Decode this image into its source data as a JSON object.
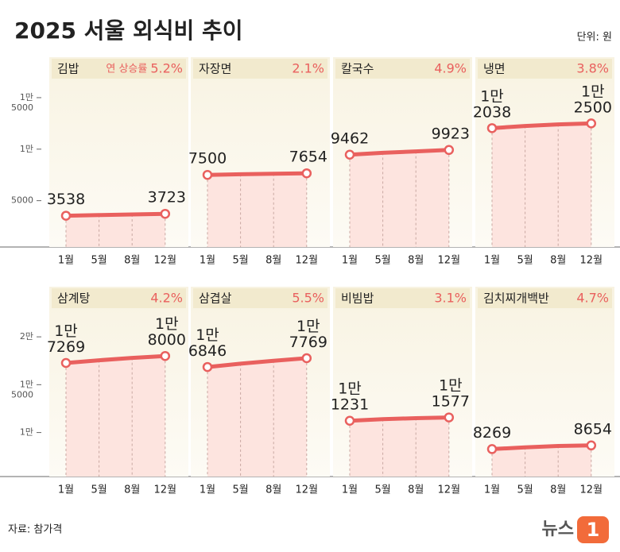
{
  "title": "2025 서울 외식비 추이",
  "unit_note": "단위: 원",
  "source": "자료: 참가격",
  "logo": "뉴스",
  "logo_mark": "1",
  "chart_data": [
    {
      "type": "line",
      "title": "김밥",
      "annotation_prefix": "연 상승률",
      "annotation": "5.2%",
      "categories": [
        "1월",
        "5월",
        "8월",
        "12월"
      ],
      "values": [
        3538,
        3600,
        3660,
        3723
      ],
      "color": "#e9605e",
      "ylim": [
        500,
        17000
      ],
      "yticks": [
        5000,
        {
          "value": 10000,
          "label": "1만"
        },
        {
          "value": 15000,
          "label": "1만\n5000"
        }
      ]
    },
    {
      "type": "line",
      "title": "자장면",
      "annotation": "2.1%",
      "categories": [
        "1월",
        "5월",
        "8월",
        "12월"
      ],
      "values": [
        7500,
        7560,
        7610,
        7654
      ],
      "color": "#e9605e",
      "ylim": [
        500,
        17000
      ]
    },
    {
      "type": "line",
      "title": "칼국수",
      "annotation": "4.9%",
      "categories": [
        "1월",
        "5월",
        "8월",
        "12월"
      ],
      "values": [
        9462,
        9650,
        9780,
        9923
      ],
      "color": "#e9605e",
      "ylim": [
        500,
        17000
      ]
    },
    {
      "type": "line",
      "title": "냉면",
      "annotation": "3.8%",
      "categories": [
        "1월",
        "5월",
        "8월",
        "12월"
      ],
      "values": [
        12038,
        12250,
        12400,
        12500
      ],
      "value_labels": [
        "1만\n2038",
        null,
        null,
        "1만\n2500"
      ],
      "color": "#e9605e",
      "ylim": [
        500,
        17000
      ]
    },
    {
      "type": "line",
      "title": "삼계탕",
      "annotation": "4.2%",
      "categories": [
        "1월",
        "5월",
        "8월",
        "12월"
      ],
      "values": [
        17269,
        17550,
        17800,
        18000
      ],
      "value_labels": [
        "1만\n7269",
        null,
        null,
        "1만\n8000"
      ],
      "color": "#e9605e",
      "ylim": [
        5400,
        22000
      ],
      "yticks": [
        {
          "value": 10000,
          "label": "1만"
        },
        {
          "value": 15000,
          "label": "1만\n5000"
        },
        {
          "value": 20000,
          "label": "2만"
        }
      ]
    },
    {
      "type": "line",
      "title": "삼겹살",
      "annotation": "5.5%",
      "categories": [
        "1월",
        "5월",
        "8월",
        "12월"
      ],
      "values": [
        16846,
        17200,
        17500,
        17769
      ],
      "value_labels": [
        "1만\n6846",
        null,
        null,
        "1만\n7769"
      ],
      "color": "#e9605e",
      "ylim": [
        5400,
        22000
      ]
    },
    {
      "type": "line",
      "title": "비빔밥",
      "annotation": "3.1%",
      "categories": [
        "1월",
        "5월",
        "8월",
        "12월"
      ],
      "values": [
        11231,
        11400,
        11500,
        11577
      ],
      "value_labels": [
        "1만\n1231",
        null,
        null,
        "1만\n1577"
      ],
      "color": "#e9605e",
      "ylim": [
        5400,
        22000
      ]
    },
    {
      "type": "line",
      "title": "김치찌개백반",
      "annotation": "4.7%",
      "categories": [
        "1월",
        "5월",
        "8월",
        "12월"
      ],
      "values": [
        8269,
        8450,
        8600,
        8654
      ],
      "color": "#e9605e",
      "ylim": [
        5400,
        22000
      ]
    }
  ]
}
